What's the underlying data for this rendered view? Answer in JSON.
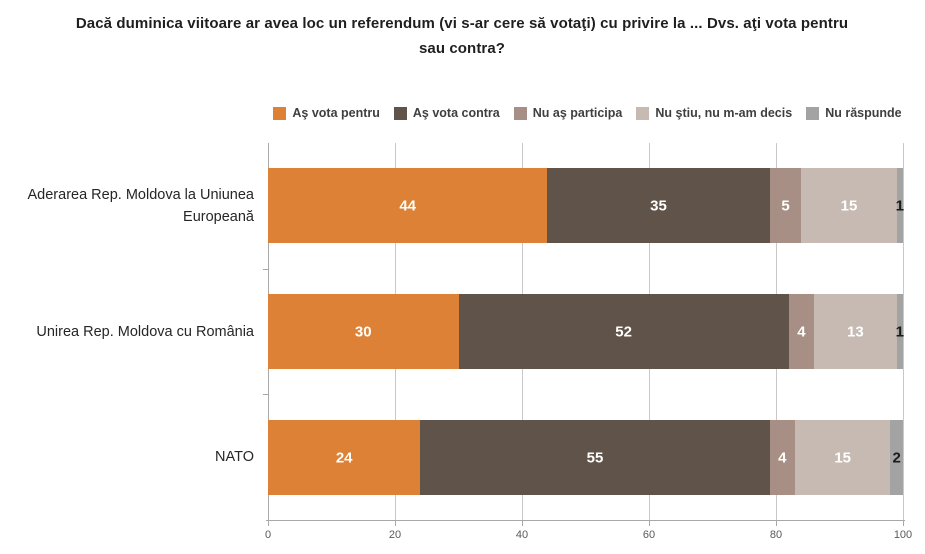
{
  "title": "Dacă duminica viitoare ar avea loc un referendum (vi s-ar cere să votaţi) cu privire la ... Dvs. aţi vota pentru sau contra?",
  "chart_data": {
    "type": "bar",
    "orientation": "horizontal",
    "stacked": true,
    "title": "Dacă duminica viitoare ar avea loc un referendum (vi s-ar cere să votaţi) cu privire la ... Dvs. aţi vota pentru sau contra?",
    "categories": [
      "Aderarea Rep. Moldova la Uniunea Europeană",
      "Unirea Rep. Moldova cu România",
      "NATO"
    ],
    "series": [
      {
        "name": "Aş vota pentru",
        "color": "#DC8135",
        "values": [
          44,
          30,
          24
        ]
      },
      {
        "name": "Aş vota contra",
        "color": "#60534A",
        "values": [
          35,
          52,
          55
        ]
      },
      {
        "name": "Nu aş participa",
        "color": "#A78F85",
        "values": [
          5,
          4,
          4
        ]
      },
      {
        "name": "Nu ştiu, nu m-am decis",
        "color": "#C6BAB3",
        "values": [
          15,
          13,
          15
        ]
      },
      {
        "name": "Nu răspunde",
        "color": "#A3A3A4",
        "values": [
          1,
          1,
          2
        ]
      }
    ],
    "last_series_label_color": "#1a1a1a",
    "value_label_color": "#ffffff",
    "xlim": [
      0,
      100
    ],
    "x_ticks": [
      0,
      20,
      40,
      60,
      80,
      100
    ],
    "grid": "vertical",
    "legend_position": "top",
    "xlabel": "",
    "ylabel": ""
  }
}
